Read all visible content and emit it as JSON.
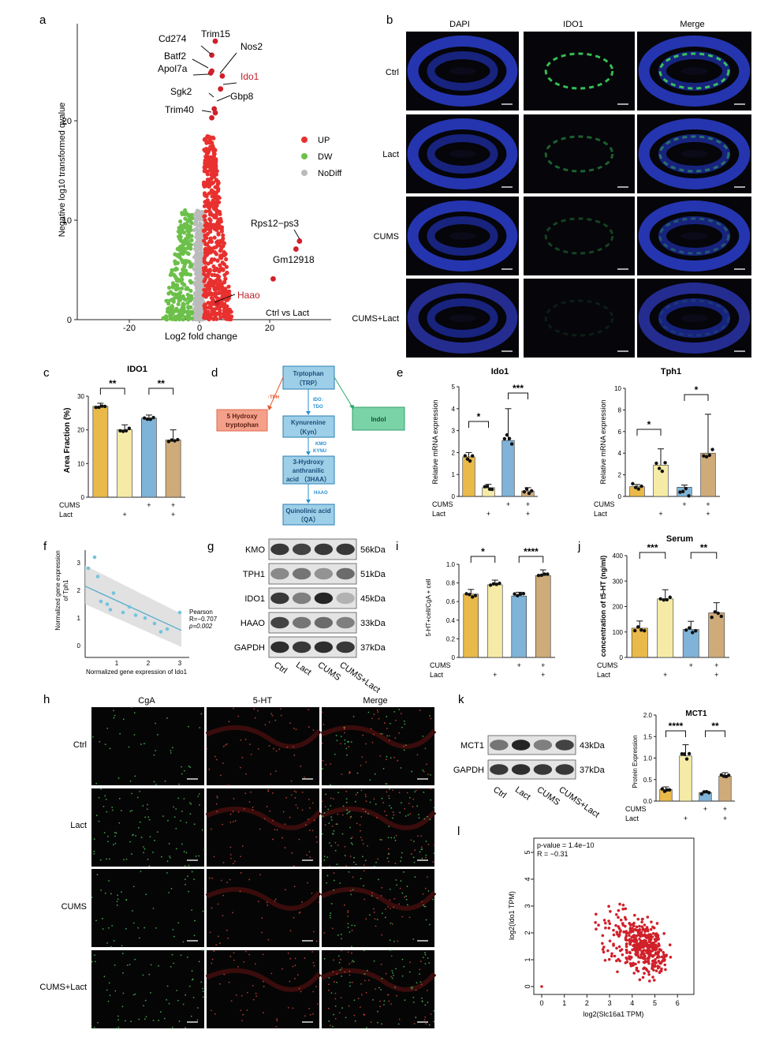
{
  "panels": {
    "a": {
      "label": "a",
      "xlabel": "Log2 fold change",
      "ylabel": "Negative log10 transformed qvalue",
      "xticks": [
        "-20",
        "0",
        "20"
      ],
      "yticks": [
        "0",
        "10",
        "20"
      ],
      "legend": [
        "UP",
        "DW",
        "NoDiff"
      ],
      "corner": "Ctrl vs Lact",
      "genes": [
        "Trim15",
        "Cd274",
        "Nos2",
        "Batf2",
        "Apol7a",
        "Ido1",
        "Sgk2",
        "Gbp8",
        "Trim40",
        "Rps12−ps3",
        "Gm12918",
        "Haao"
      ],
      "colors": {
        "up": "#e8312f",
        "dw": "#6cc04a",
        "nodiff": "#bbbbbb",
        "highlight": "#d0202a"
      }
    },
    "b": {
      "label": "b",
      "columns": [
        "DAPI",
        "IDO1",
        "Merge"
      ],
      "rows": [
        "Ctrl",
        "Lact",
        "CUMS",
        "CUMS+Lact"
      ]
    },
    "c": {
      "label": "c",
      "title": "IDO1",
      "ylabel": "Area Fraction  (%)",
      "yticks": [
        "0",
        "10",
        "20",
        "30"
      ],
      "sig": [
        "**",
        "**"
      ],
      "cums_row": [
        "CUMS",
        "",
        "",
        "+",
        "+"
      ],
      "lact_row": [
        "Lact",
        "",
        "+",
        "",
        "+"
      ]
    },
    "d": {
      "label": "d",
      "nodes": [
        "Trptophan",
        "（TRP）",
        "Kynurenine",
        "（Kyn）",
        "3-Hydroxy",
        "anthranilic",
        "acid （3HAA）",
        "Quinolinic acid",
        "（QA）",
        "5 Hydroxy",
        "tryptophan",
        "Indol"
      ],
      "enzymes": [
        "↑TPH",
        "IDO↓",
        "TDO",
        "KMO",
        "KYNU",
        "HAAO"
      ]
    },
    "e": {
      "label": "e",
      "title1": "Ido1",
      "title2": "Tph1",
      "ylabel": "Relative mRNA expression",
      "yticks1": [
        "0",
        "1",
        "2",
        "3",
        "4",
        "5"
      ],
      "yticks2": [
        "0",
        "2",
        "4",
        "6",
        "8",
        "10"
      ],
      "sig1": [
        "*",
        "***"
      ],
      "sig2": [
        "*",
        "*"
      ],
      "cums_row": [
        "CUMS",
        "",
        "",
        "+",
        "+"
      ],
      "lact_row": [
        "Lact",
        "",
        "+",
        "",
        "+"
      ]
    },
    "f": {
      "label": "f",
      "ylabel1": "Normalized gene expression",
      "ylabel2": "of Tph1",
      "xlabel": "Normalized gene expression of Ido1",
      "xticks": [
        "1",
        "2",
        "3"
      ],
      "yticks": [
        "0",
        "1",
        "2",
        "3"
      ],
      "stats": [
        "Pearson",
        "R=−0.707",
        "p=0.002"
      ]
    },
    "g": {
      "label": "g",
      "proteins": [
        "KMO",
        "TPH1",
        "IDO1",
        "HAAO",
        "GAPDH"
      ],
      "sizes": [
        "56kDa",
        "51kDa",
        "45kDa",
        "33kDa",
        "37kDa"
      ],
      "lanes": [
        "Ctrl",
        "Lact",
        "CUMS",
        "CUMS+Lact"
      ]
    },
    "i": {
      "label": "i",
      "ylabel": "5-HT+cell/CgA + cell",
      "yticks": [
        "0",
        "0.2",
        "0.4",
        "0.6",
        "0.8",
        "1.0"
      ],
      "sig": [
        "*",
        "****"
      ],
      "cums_row": [
        "CUMS",
        "",
        "",
        "+",
        "+"
      ],
      "lact_row": [
        "Lact",
        "",
        "+",
        "",
        "+"
      ]
    },
    "j": {
      "label": "j",
      "title": "Serum",
      "ylabel": "concentration of t5-HT  (ng/ml)",
      "yticks": [
        "0",
        "100",
        "200",
        "300",
        "400"
      ],
      "sig": [
        "***",
        "**"
      ],
      "cums_row": [
        "CUMS",
        "",
        "",
        "+",
        "+"
      ],
      "lact_row": [
        "Lact",
        "",
        "+",
        "",
        "+"
      ]
    },
    "h": {
      "label": "h",
      "columns": [
        "CgA",
        "5-HT",
        "Merge"
      ],
      "rows": [
        "Ctrl",
        "Lact",
        "CUMS",
        "CUMS+Lact"
      ]
    },
    "k": {
      "label": "k",
      "proteins": [
        "MCT1",
        "GAPDH"
      ],
      "sizes": [
        "43kDa",
        "37kDa"
      ],
      "lanes": [
        "Ctrl",
        "Lact",
        "CUMS",
        "CUMS+Lact"
      ],
      "title": "MCT1",
      "ylabel": "Protein Expression",
      "yticks": [
        "0.0",
        "0.5",
        "1.0",
        "1.5",
        "2.0"
      ],
      "sig": [
        "****",
        "**"
      ],
      "cums_row": [
        "CUMS",
        "",
        "",
        "+",
        "+"
      ],
      "lact_row": [
        "Lact",
        "",
        "+",
        "",
        "+"
      ]
    },
    "l": {
      "label": "l",
      "xlabel": "log2(Slc16a1 TPM)",
      "ylabel": "log2(Ido1 TPM)",
      "xticks": [
        "0",
        "1",
        "2",
        "3",
        "4",
        "5",
        "6"
      ],
      "yticks": [
        "0",
        "1",
        "2",
        "3",
        "4",
        "5"
      ],
      "stats": [
        "p-value = 1.4e−10",
        "R = −0.31"
      ]
    }
  },
  "colors": {
    "ctrl": "#e9b949",
    "lact": "#f5eba6",
    "cums": "#7fb3d8",
    "cums_lact": "#cfab79"
  },
  "chart_data": [
    {
      "panel": "c",
      "type": "bar",
      "categories": [
        "Ctrl",
        "Lact",
        "CUMS",
        "CUMS+Lact"
      ],
      "values": [
        27,
        20,
        23.5,
        17
      ],
      "ylim": [
        0,
        30
      ]
    },
    {
      "panel": "e-Ido1",
      "type": "bar",
      "categories": [
        "Ctrl",
        "Lact",
        "CUMS",
        "CUMS+Lact"
      ],
      "values": [
        1.8,
        0.4,
        2.55,
        0.25
      ],
      "ylim": [
        0,
        5
      ]
    },
    {
      "panel": "e-Tph1",
      "type": "bar",
      "categories": [
        "Ctrl",
        "Lact",
        "CUMS",
        "CUMS+Lact"
      ],
      "values": [
        0.9,
        2.9,
        0.85,
        4.0
      ],
      "ylim": [
        0,
        10
      ]
    },
    {
      "panel": "i",
      "type": "bar",
      "categories": [
        "Ctrl",
        "Lact",
        "CUMS",
        "CUMS+Lact"
      ],
      "values": [
        0.68,
        0.78,
        0.66,
        0.88
      ],
      "ylim": [
        0,
        1.0
      ]
    },
    {
      "panel": "j",
      "type": "bar",
      "categories": [
        "Ctrl",
        "Lact",
        "CUMS",
        "CUMS+Lact"
      ],
      "values": [
        115,
        230,
        110,
        175
      ],
      "ylim": [
        0,
        400
      ]
    },
    {
      "panel": "k",
      "type": "bar",
      "categories": [
        "Ctrl",
        "Lact",
        "CUMS",
        "CUMS+Lact"
      ],
      "values": [
        0.27,
        1.05,
        0.2,
        0.58
      ],
      "ylim": [
        0,
        2.0
      ]
    },
    {
      "panel": "f",
      "type": "scatter",
      "x": [
        0.1,
        0.3,
        0.4,
        0.5,
        0.9,
        0.7,
        0.8,
        1.2,
        1.4,
        1.6,
        1.9,
        2.2,
        2.4,
        2.6,
        3.0
      ],
      "y": [
        2.8,
        3.2,
        2.5,
        1.6,
        1.9,
        1.5,
        1.3,
        1.2,
        1.4,
        1.1,
        1.0,
        0.8,
        0.5,
        0.6,
        1.2
      ],
      "fit": {
        "x": [
          0,
          3.05
        ],
        "y": [
          2.15,
          0.55
        ]
      }
    },
    {
      "panel": "l",
      "type": "scatter",
      "n_points": 420,
      "xlim": [
        0,
        6.5
      ],
      "ylim": [
        0,
        5.3
      ]
    }
  ]
}
